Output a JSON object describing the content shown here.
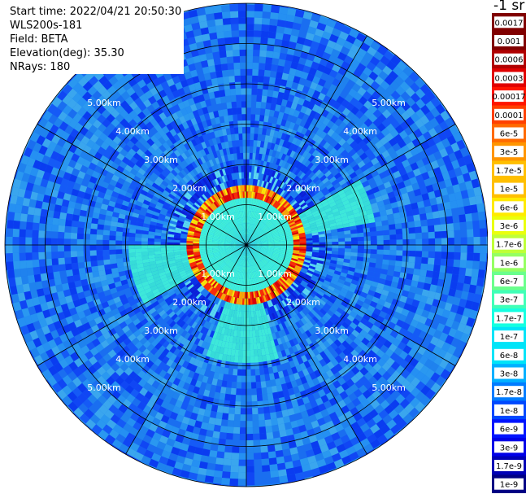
{
  "header": {
    "start_time_label": "Start time: 2022/04/21 20:50:30",
    "instrument": "WLS200s-181",
    "field_label": "Field: BETA",
    "elevation_label": "Elevation(deg): 35.30",
    "nrays_label": "NRays: 180"
  },
  "colorbar": {
    "unit_label": "-1 sr",
    "colors": [
      "#800000",
      "#b00000",
      "#e00000",
      "#ff1500",
      "#ff4000",
      "#ff6a00",
      "#ff9500",
      "#ffbf00",
      "#ffea00",
      "#eaff0c",
      "#bfff37",
      "#95ff62",
      "#6aff8c",
      "#40ffb7",
      "#15ffe1",
      "#00e4f8",
      "#00b0ff",
      "#007cff",
      "#0048ff",
      "#0014ff",
      "#0000e8",
      "#0000b6",
      "#000084"
    ],
    "tick_labels": [
      "0.0017",
      "0.001",
      "0.0006",
      "0.0003",
      "0.00017",
      "0.0001",
      "6e-5",
      "3e-5",
      "1.7e-5",
      "1e-5",
      "6e-6",
      "3e-6",
      "1.7e-6",
      "1e-6",
      "6e-7",
      "3e-7",
      "1.7e-7",
      "1e-7",
      "6e-8",
      "3e-8",
      "1.7e-8",
      "1e-8",
      "6e-9",
      "3e-9",
      "1.7e-9",
      "1e-9"
    ]
  },
  "chart_data": {
    "type": "polar_ppi",
    "field": "BETA",
    "rays": 180,
    "max_range_km": 6.0,
    "range_rings_km": [
      1,
      2,
      3,
      4,
      5,
      6
    ],
    "ring_labels": [
      "1.00km",
      "2.00km",
      "3.00km",
      "4.00km",
      "5.00km"
    ],
    "radial_lines_every_deg": 30,
    "colorscale": "jet, logarithmic",
    "value_range": [
      1e-09,
      0.0017
    ],
    "near_field_cyan_radius_km": 1.2,
    "high_return_ring_km": 1.3,
    "bright_sectors_deg": [
      {
        "from": 240,
        "to": 270,
        "reach_km": 3.0
      },
      {
        "from": 60,
        "to": 80,
        "reach_km": 3.2
      },
      {
        "from": 165,
        "to": 200,
        "reach_km": 3.0
      }
    ]
  }
}
